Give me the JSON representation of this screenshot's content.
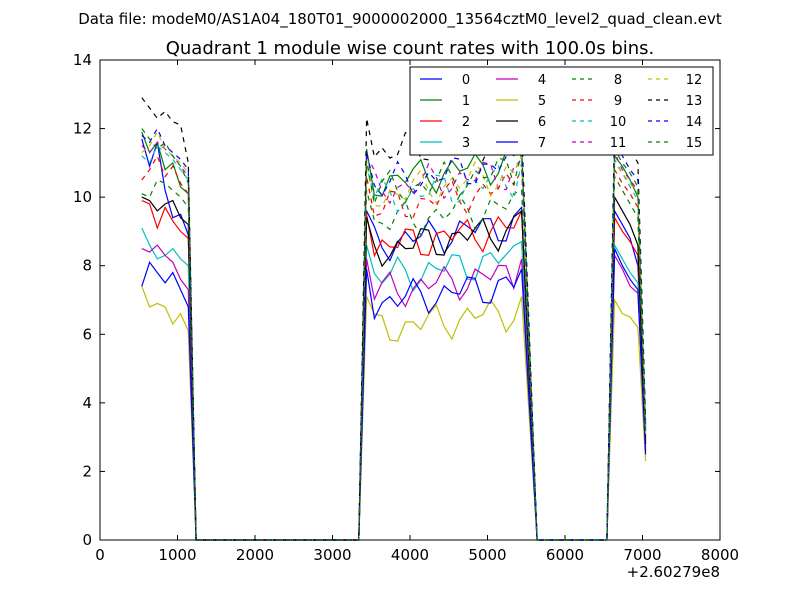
{
  "suptitle": "Data file: modeM0/AS1A04_180T01_9000002000_13564cztM0_level2_quad_clean.evt",
  "chart_data": {
    "type": "line",
    "title": "Quadrant 1 module wise count rates with 100.0s bins.",
    "xlabel": "",
    "ylabel": "",
    "x_offset_label": "+2.60279e8",
    "xlim": [
      0,
      8000
    ],
    "ylim": [
      0,
      14
    ],
    "x_ticks": [
      "0",
      "1000",
      "2000",
      "3000",
      "4000",
      "5000",
      "6000",
      "7000",
      "8000"
    ],
    "y_ticks": [
      "0",
      "2",
      "4",
      "6",
      "8",
      "10",
      "12",
      "14"
    ],
    "grid": false,
    "legend_position": "top-right",
    "segments": [
      {
        "start": 540,
        "end": 1140,
        "step": 100,
        "drop_to": 1240
      },
      {
        "start": 3440,
        "end": 5440,
        "step": 100,
        "rise_from": 3340,
        "drop_to": 5640
      },
      {
        "start": 6640,
        "end": 6940,
        "step": 100,
        "rise_from": 6540,
        "tail": 7040
      }
    ],
    "zero_stretches": [
      [
        1240,
        3340
      ],
      [
        5640,
        6540
      ]
    ],
    "series": [
      {
        "name": "0",
        "color": "#0000ff",
        "dash": "solid",
        "base": [
          11.7,
          10.9,
          11.6,
          10.2,
          9.4,
          9.5,
          8.9
        ],
        "mid": 8.6,
        "end": 9.7,
        "third": [
          9.6,
          9.2,
          8.8,
          8.0
        ],
        "tail": 3.0
      },
      {
        "name": "1",
        "color": "#008000",
        "dash": "solid",
        "base": [
          11.9,
          11.3,
          11.6,
          10.8,
          11.0,
          10.3,
          10.1
        ],
        "mid": 10.4,
        "end": 11.5,
        "third": [
          11.2,
          10.9,
          10.5,
          10.0
        ],
        "tail": 3.2
      },
      {
        "name": "2",
        "color": "#ff0000",
        "dash": "solid",
        "base": [
          9.9,
          9.8,
          9.1,
          9.7,
          9.3,
          9.0,
          8.8
        ],
        "mid": 8.5,
        "end": 9.6,
        "third": [
          9.4,
          9.0,
          8.7,
          8.3
        ],
        "tail": 2.9
      },
      {
        "name": "3",
        "color": "#00bfbf",
        "dash": "solid",
        "base": [
          9.1,
          8.6,
          8.2,
          8.3,
          8.5,
          8.2,
          8.0
        ],
        "mid": 7.6,
        "end": 8.7,
        "third": [
          8.6,
          8.2,
          7.8,
          7.5
        ],
        "tail": 2.7
      },
      {
        "name": "4",
        "color": "#bf00bf",
        "dash": "solid",
        "base": [
          8.5,
          8.4,
          8.6,
          8.3,
          8.1,
          7.6,
          7.3
        ],
        "mid": 7.2,
        "end": 8.2,
        "third": [
          8.3,
          7.9,
          7.4,
          7.2
        ],
        "tail": 2.6
      },
      {
        "name": "5",
        "color": "#bfbf00",
        "dash": "solid",
        "base": [
          7.4,
          6.8,
          6.9,
          6.8,
          6.3,
          6.6,
          6.1
        ],
        "mid": 6.1,
        "end": 7.1,
        "third": [
          7.0,
          6.6,
          6.5,
          6.2
        ],
        "tail": 2.3
      },
      {
        "name": "6",
        "color": "#000000",
        "dash": "solid",
        "base": [
          10.0,
          9.9,
          9.6,
          9.8,
          9.9,
          9.4,
          9.2
        ],
        "mid": 8.4,
        "end": 9.6,
        "third": [
          10.0,
          9.6,
          9.2,
          8.6
        ],
        "tail": 2.8
      },
      {
        "name": "7",
        "color": "#0000ff",
        "dash": "solid",
        "base": [
          7.4,
          8.1,
          7.8,
          7.5,
          7.8,
          7.3,
          6.8
        ],
        "mid": 6.9,
        "end": 7.9,
        "third": [
          8.5,
          8.0,
          7.6,
          7.3
        ],
        "tail": 2.5
      },
      {
        "name": "8",
        "color": "#008000",
        "dash": "dashed",
        "base": [
          10.1,
          10.0,
          10.5,
          10.4,
          10.2,
          10.0,
          9.7
        ],
        "mid": 9.2,
        "end": 10.2,
        "third": [
          10.6,
          10.2,
          9.8,
          9.4
        ],
        "tail": 3.1
      },
      {
        "name": "9",
        "color": "#ff0000",
        "dash": "dashed",
        "base": [
          10.5,
          10.8,
          11.2,
          10.6,
          10.9,
          10.4,
          10.1
        ],
        "mid": 9.6,
        "end": 10.8,
        "third": [
          10.8,
          10.4,
          10.1,
          9.7
        ],
        "tail": 3.3
      },
      {
        "name": "10",
        "color": "#00bfbf",
        "dash": "dashed",
        "base": [
          11.2,
          11.0,
          11.5,
          11.3,
          11.1,
          10.8,
          10.5
        ],
        "mid": 9.9,
        "end": 11.0,
        "third": [
          11.1,
          10.7,
          10.3,
          9.9
        ],
        "tail": 3.2
      },
      {
        "name": "11",
        "color": "#bf00bf",
        "dash": "dashed",
        "base": [
          11.5,
          11.3,
          11.6,
          11.4,
          11.2,
          10.9,
          10.6
        ],
        "mid": 10.2,
        "end": 11.1,
        "third": [
          11.3,
          10.8,
          10.5,
          10.2
        ],
        "tail": 3.4
      },
      {
        "name": "12",
        "color": "#bfbf00",
        "dash": "dashed",
        "base": [
          11.3,
          11.5,
          11.9,
          11.4,
          11.2,
          11.0,
          10.7
        ],
        "mid": 10.0,
        "end": 11.2,
        "third": [
          11.0,
          10.7,
          10.4,
          10.1
        ],
        "tail": 3.1
      },
      {
        "name": "13",
        "color": "#000000",
        "dash": "dashed",
        "base": [
          12.9,
          12.6,
          12.3,
          12.5,
          12.2,
          12.1,
          11.0
        ],
        "mid": 11.3,
        "end": 12.0,
        "third": [
          12.2,
          11.8,
          11.4,
          11.0
        ],
        "tail": 3.5
      },
      {
        "name": "14",
        "color": "#0000ff",
        "dash": "dashed",
        "base": [
          11.8,
          11.6,
          12.0,
          11.5,
          11.3,
          11.1,
          10.8
        ],
        "mid": 10.3,
        "end": 11.5,
        "third": [
          11.6,
          11.2,
          10.8,
          10.5
        ],
        "tail": 3.3
      },
      {
        "name": "15",
        "color": "#008000",
        "dash": "dashed",
        "base": [
          12.0,
          11.7,
          11.4,
          11.6,
          11.2,
          10.9,
          10.4
        ],
        "mid": 10.1,
        "end": 11.3,
        "third": [
          11.4,
          11.0,
          10.7,
          10.3
        ],
        "tail": 3.2
      }
    ]
  }
}
